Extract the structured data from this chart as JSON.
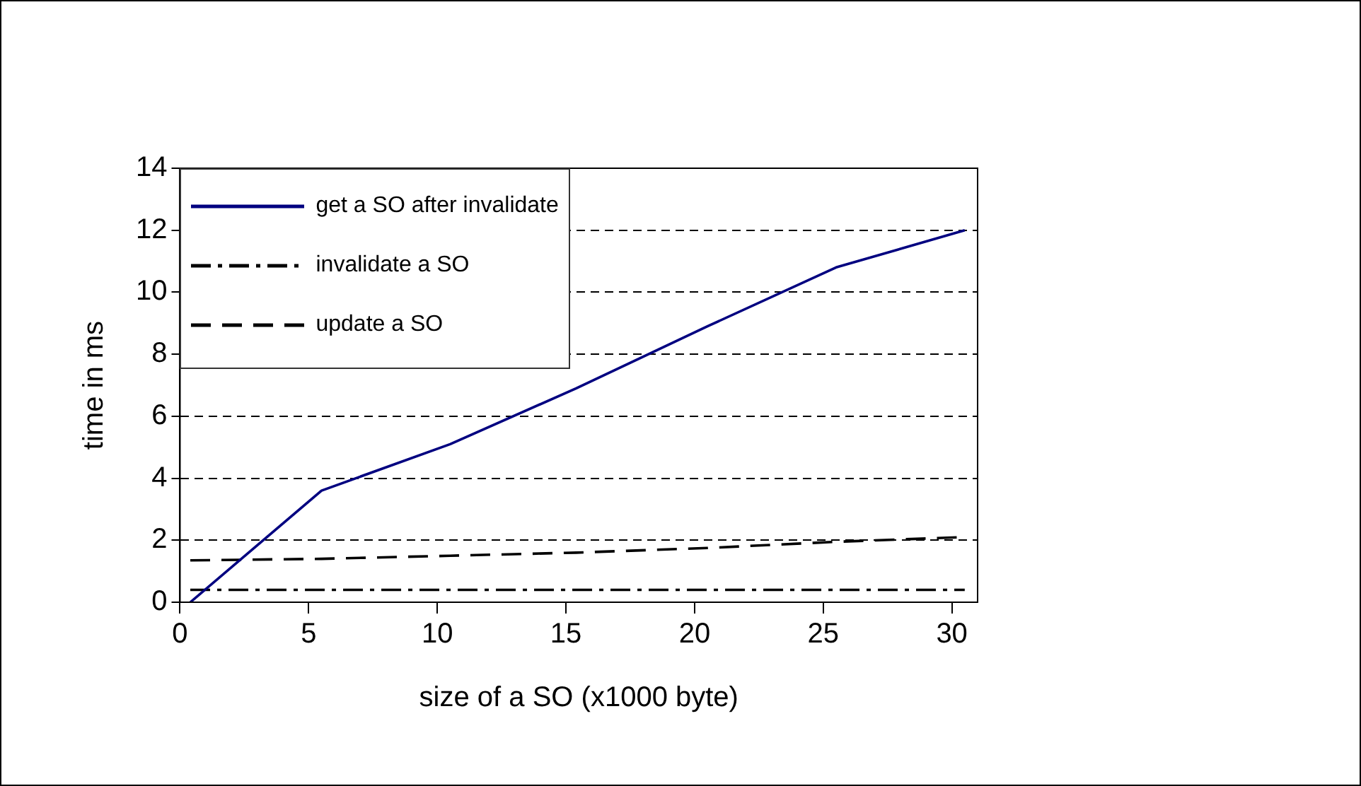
{
  "chart_data": {
    "type": "line",
    "xlabel": "size of a SO (x1000 byte)",
    "ylabel": "time in ms",
    "x": [
      0.4,
      5.5,
      10.5,
      15.4,
      20.5,
      25.5,
      30.5
    ],
    "series": [
      {
        "name": "get a SO after invalidate",
        "color": "#000080",
        "line_style": "solid",
        "values": [
          0,
          3.6,
          5.1,
          6.9,
          8.9,
          10.8,
          12
        ]
      },
      {
        "name": "invalidate a SO",
        "color": "#000000",
        "line_style": "dotted",
        "values": [
          0.4,
          0.4,
          0.4,
          0.4,
          0.4,
          0.4,
          0.4
        ]
      },
      {
        "name": "update a SO",
        "color": "#000000",
        "line_style": "dashed",
        "values": [
          1.35,
          1.4,
          1.5,
          1.6,
          1.75,
          1.95,
          2.1
        ]
      }
    ],
    "xlim": [
      0,
      31
    ],
    "xticks": [
      0,
      5,
      10,
      15,
      20,
      25,
      30
    ],
    "ylim": [
      0,
      14
    ],
    "yticks": [
      0,
      2,
      4,
      6,
      8,
      10,
      12,
      14
    ],
    "grid": "y",
    "legend": "top left",
    "marker": "none"
  }
}
